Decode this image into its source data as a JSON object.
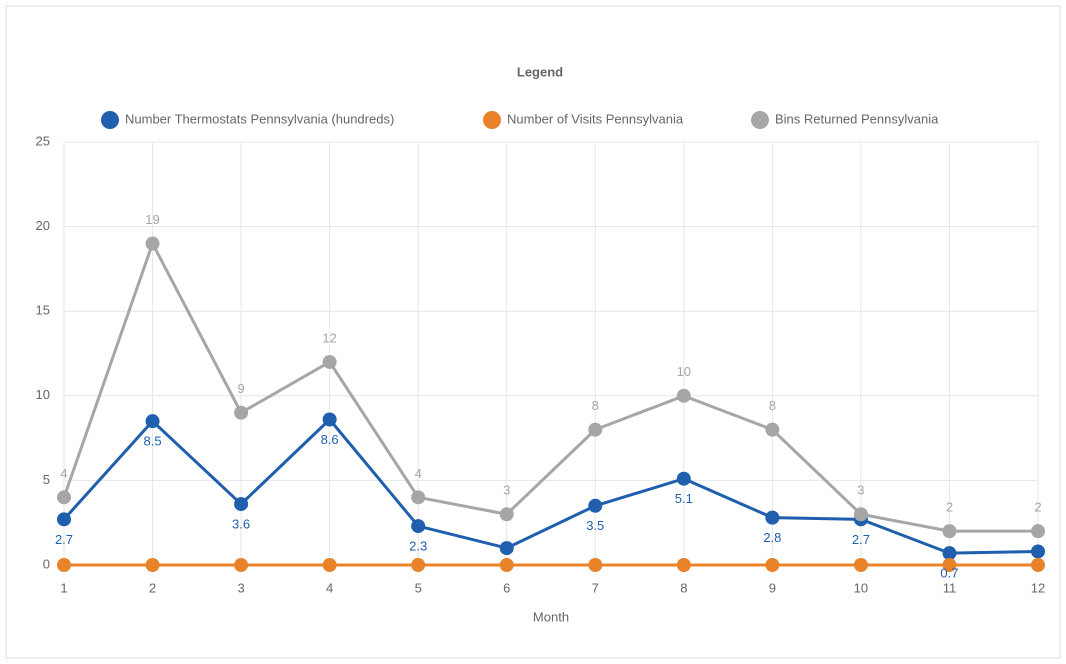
{
  "chart_data": {
    "type": "line",
    "legend_title": "Legend",
    "x_label": "Month",
    "x": [
      1,
      2,
      3,
      4,
      5,
      6,
      7,
      8,
      9,
      10,
      11,
      12
    ],
    "xlim": [
      1,
      12
    ],
    "xticks": [
      1,
      2,
      3,
      4,
      5,
      6,
      7,
      8,
      9,
      10,
      11,
      12
    ],
    "ylim": [
      0,
      25
    ],
    "yticks": [
      0,
      5,
      10,
      15,
      20,
      25
    ],
    "grid": true,
    "legend": "top",
    "series": [
      {
        "name": "Number Thermostats Pennsylvania (hundreds)",
        "color": "#1f5fad",
        "values": [
          2.7,
          8.5,
          3.6,
          8.6,
          2.3,
          1.0,
          3.5,
          5.1,
          2.8,
          2.7,
          0.7,
          0.8
        ],
        "value_labels": [
          "2.7",
          "8.5",
          "3.6",
          "8.6",
          "2.3",
          null,
          "3.5",
          "5.1",
          "2.8",
          "2.7",
          "0.7",
          null
        ]
      },
      {
        "name": "Number of Visits Pennsylvania",
        "color": "#e8832a",
        "values": [
          0,
          0,
          0,
          0,
          0,
          0,
          0,
          0,
          0,
          0,
          0,
          0
        ]
      },
      {
        "name": "Bins Returned Pennsylvania",
        "color": "#a6a6a6",
        "values": [
          4,
          19,
          9,
          12,
          4,
          3,
          8,
          10,
          8,
          3,
          2,
          2
        ],
        "value_labels": [
          "4",
          "19",
          "9",
          "12",
          "4",
          "3",
          "8",
          "10",
          "8",
          "3",
          "2",
          "2"
        ]
      }
    ]
  }
}
